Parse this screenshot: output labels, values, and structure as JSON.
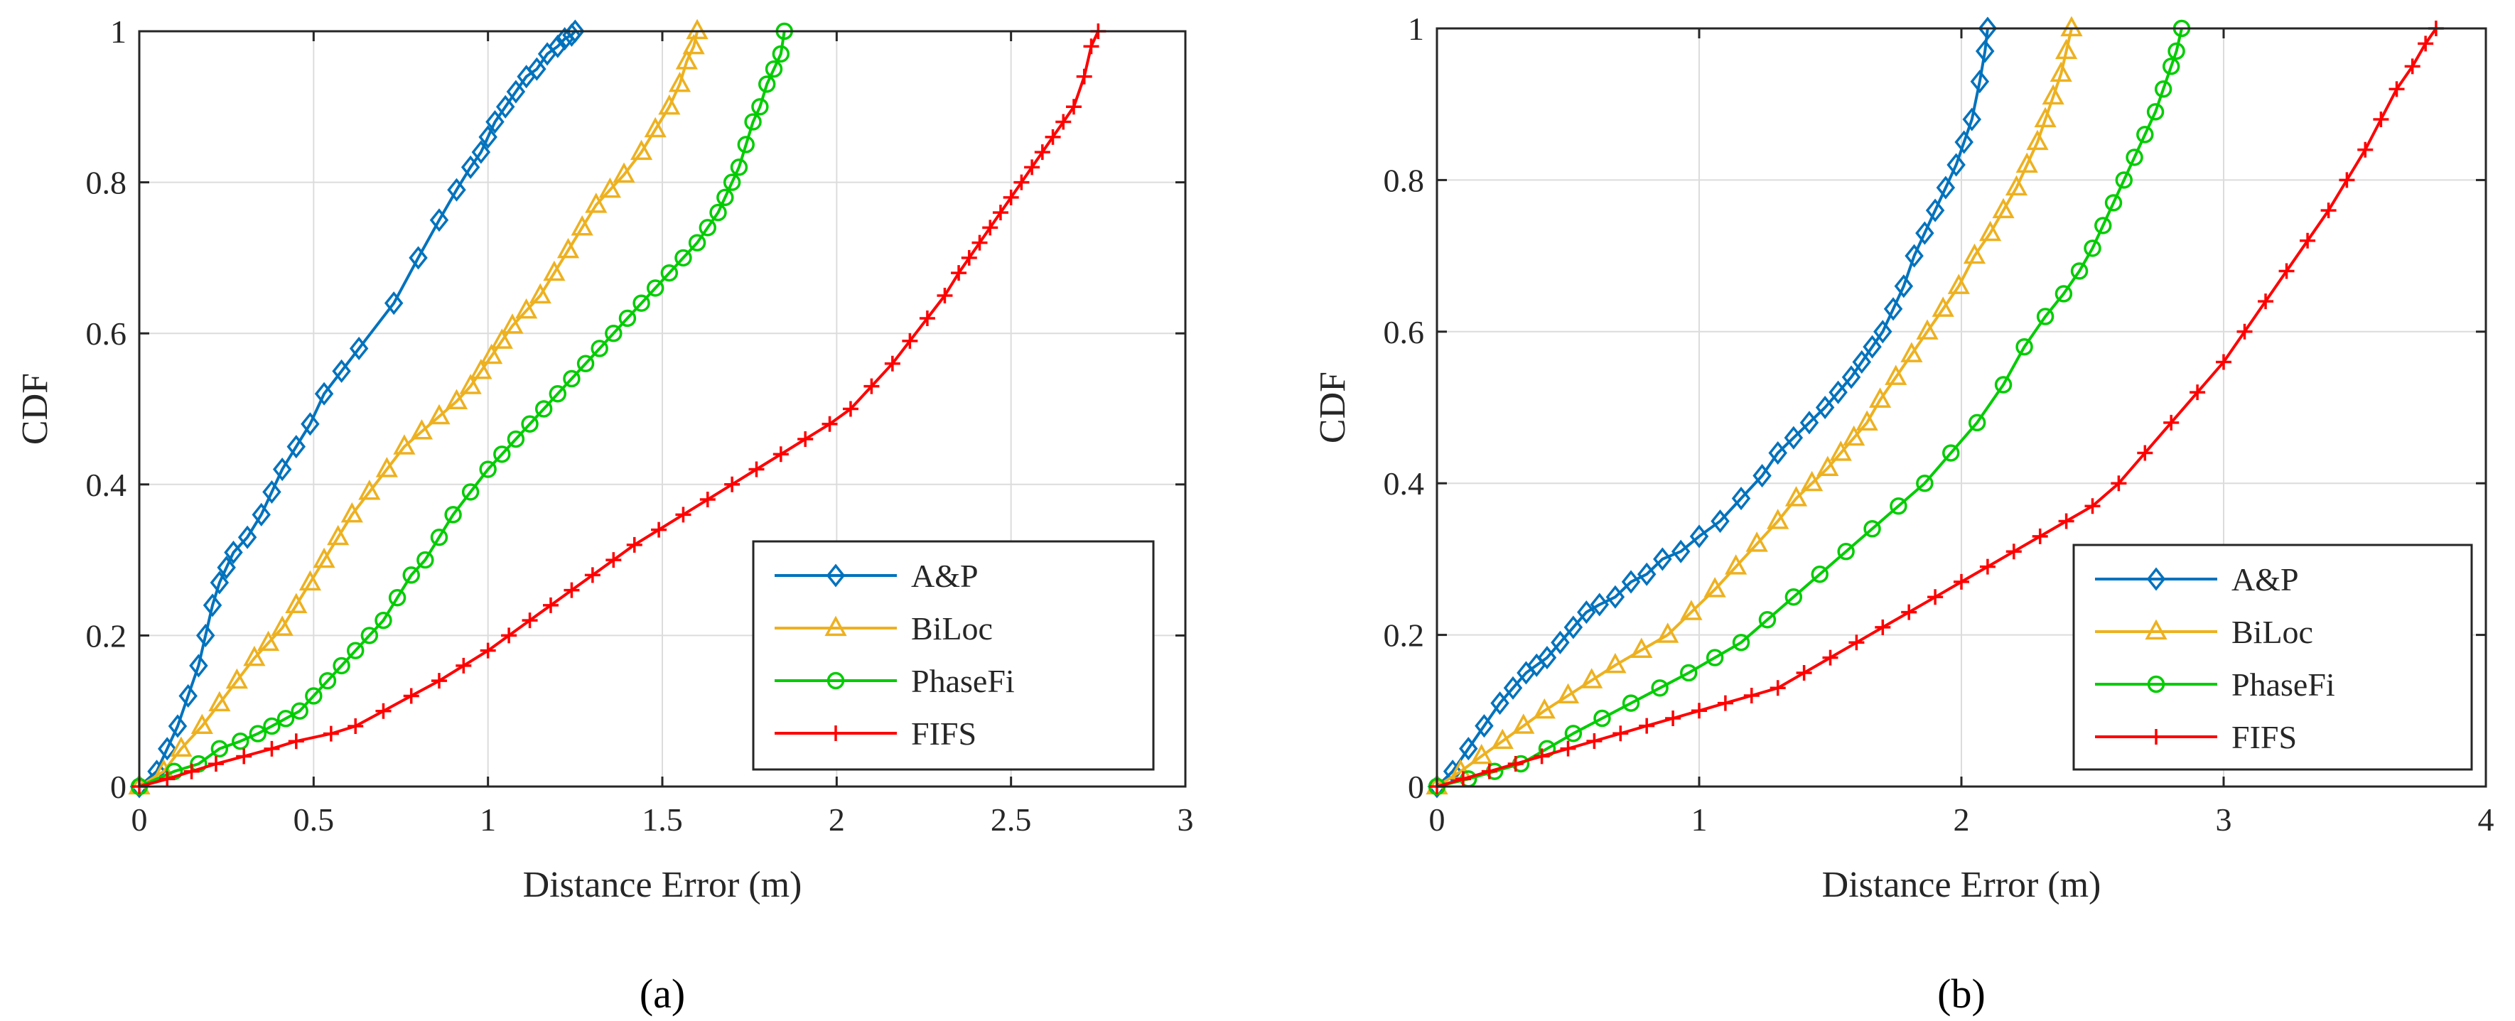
{
  "chart_data": [
    {
      "type": "line",
      "panel_label": "(a)",
      "xlabel": "Distance Error (m)",
      "ylabel": "CDF",
      "xlim": [
        0,
        3
      ],
      "ylim": [
        0,
        1
      ],
      "xticks": [
        0,
        0.5,
        1,
        1.5,
        2,
        2.5,
        3
      ],
      "xtick_labels": [
        "0",
        "0.5",
        "1",
        "1.5",
        "2",
        "2.5",
        "3"
      ],
      "yticks": [
        0,
        0.2,
        0.4,
        0.6,
        0.8,
        1
      ],
      "ytick_labels": [
        "0",
        "0.2",
        "0.4",
        "0.6",
        "0.8",
        "1"
      ],
      "grid": true,
      "legend_position": "bottom-right",
      "series": [
        {
          "name": "A&P",
          "color": "#0072BD",
          "marker": "diamond",
          "x": [
            0,
            0.05,
            0.08,
            0.11,
            0.14,
            0.17,
            0.19,
            0.21,
            0.23,
            0.25,
            0.27,
            0.31,
            0.35,
            0.38,
            0.41,
            0.45,
            0.49,
            0.53,
            0.58,
            0.63,
            0.73,
            0.8,
            0.86,
            0.91,
            0.95,
            0.98,
            1.0,
            1.02,
            1.05,
            1.08,
            1.11,
            1.14,
            1.17,
            1.2,
            1.22,
            1.24,
            1.25
          ],
          "y": [
            0,
            0.02,
            0.05,
            0.08,
            0.12,
            0.16,
            0.2,
            0.24,
            0.27,
            0.29,
            0.31,
            0.33,
            0.36,
            0.39,
            0.42,
            0.45,
            0.48,
            0.52,
            0.55,
            0.58,
            0.64,
            0.7,
            0.75,
            0.79,
            0.82,
            0.84,
            0.86,
            0.88,
            0.9,
            0.92,
            0.94,
            0.95,
            0.97,
            0.98,
            0.99,
            0.995,
            1.0
          ]
        },
        {
          "name": "BiLoc",
          "color": "#EDB120",
          "marker": "triangle",
          "x": [
            0,
            0.07,
            0.12,
            0.18,
            0.23,
            0.28,
            0.33,
            0.37,
            0.41,
            0.45,
            0.49,
            0.53,
            0.57,
            0.61,
            0.66,
            0.71,
            0.76,
            0.81,
            0.86,
            0.91,
            0.95,
            0.98,
            1.01,
            1.04,
            1.07,
            1.11,
            1.15,
            1.19,
            1.23,
            1.27,
            1.31,
            1.35,
            1.39,
            1.44,
            1.48,
            1.52,
            1.55,
            1.57,
            1.59,
            1.6
          ],
          "y": [
            0,
            0.02,
            0.05,
            0.08,
            0.11,
            0.14,
            0.17,
            0.19,
            0.21,
            0.24,
            0.27,
            0.3,
            0.33,
            0.36,
            0.39,
            0.42,
            0.45,
            0.47,
            0.49,
            0.51,
            0.53,
            0.55,
            0.57,
            0.59,
            0.61,
            0.63,
            0.65,
            0.68,
            0.71,
            0.74,
            0.77,
            0.79,
            0.81,
            0.84,
            0.87,
            0.9,
            0.93,
            0.96,
            0.98,
            1.0
          ]
        },
        {
          "name": "PhaseFi",
          "color": "#00CC00",
          "marker": "circle",
          "x": [
            0,
            0.1,
            0.17,
            0.23,
            0.29,
            0.34,
            0.38,
            0.42,
            0.46,
            0.5,
            0.54,
            0.58,
            0.62,
            0.66,
            0.7,
            0.74,
            0.78,
            0.82,
            0.86,
            0.9,
            0.95,
            1.0,
            1.04,
            1.08,
            1.12,
            1.16,
            1.2,
            1.24,
            1.28,
            1.32,
            1.36,
            1.4,
            1.44,
            1.48,
            1.52,
            1.56,
            1.6,
            1.63,
            1.66,
            1.68,
            1.7,
            1.72,
            1.74,
            1.76,
            1.78,
            1.8,
            1.82,
            1.84,
            1.85
          ],
          "y": [
            0,
            0.02,
            0.03,
            0.05,
            0.06,
            0.07,
            0.08,
            0.09,
            0.1,
            0.12,
            0.14,
            0.16,
            0.18,
            0.2,
            0.22,
            0.25,
            0.28,
            0.3,
            0.33,
            0.36,
            0.39,
            0.42,
            0.44,
            0.46,
            0.48,
            0.5,
            0.52,
            0.54,
            0.56,
            0.58,
            0.6,
            0.62,
            0.64,
            0.66,
            0.68,
            0.7,
            0.72,
            0.74,
            0.76,
            0.78,
            0.8,
            0.82,
            0.85,
            0.88,
            0.9,
            0.93,
            0.95,
            0.97,
            1.0
          ]
        },
        {
          "name": "FIFS",
          "color": "#FF0000",
          "marker": "plus",
          "x": [
            0,
            0.08,
            0.15,
            0.22,
            0.3,
            0.38,
            0.45,
            0.55,
            0.62,
            0.7,
            0.78,
            0.86,
            0.93,
            1.0,
            1.06,
            1.12,
            1.18,
            1.24,
            1.3,
            1.36,
            1.42,
            1.49,
            1.56,
            1.63,
            1.7,
            1.77,
            1.84,
            1.91,
            1.98,
            2.04,
            2.1,
            2.16,
            2.21,
            2.26,
            2.31,
            2.35,
            2.38,
            2.41,
            2.44,
            2.47,
            2.5,
            2.53,
            2.56,
            2.59,
            2.62,
            2.65,
            2.68,
            2.71,
            2.73,
            2.75
          ],
          "y": [
            0,
            0.01,
            0.02,
            0.03,
            0.04,
            0.05,
            0.06,
            0.07,
            0.08,
            0.1,
            0.12,
            0.14,
            0.16,
            0.18,
            0.2,
            0.22,
            0.24,
            0.26,
            0.28,
            0.3,
            0.32,
            0.34,
            0.36,
            0.38,
            0.4,
            0.42,
            0.44,
            0.46,
            0.48,
            0.5,
            0.53,
            0.56,
            0.59,
            0.62,
            0.65,
            0.68,
            0.7,
            0.72,
            0.74,
            0.76,
            0.78,
            0.8,
            0.82,
            0.84,
            0.86,
            0.88,
            0.9,
            0.94,
            0.98,
            1.0
          ]
        }
      ]
    },
    {
      "type": "line",
      "panel_label": "(b)",
      "xlabel": "Distance Error (m)",
      "ylabel": "CDF",
      "xlim": [
        0,
        4
      ],
      "ylim": [
        0,
        1
      ],
      "xticks": [
        0,
        1,
        2,
        3,
        4
      ],
      "xtick_labels": [
        "0",
        "1",
        "2",
        "3",
        "4"
      ],
      "yticks": [
        0,
        0.2,
        0.4,
        0.6,
        0.8,
        1
      ],
      "ytick_labels": [
        "0",
        "0.2",
        "0.4",
        "0.6",
        "0.8",
        "1"
      ],
      "grid": true,
      "legend_position": "bottom-right",
      "series": [
        {
          "name": "A&P",
          "color": "#0072BD",
          "marker": "diamond",
          "x": [
            0,
            0.06,
            0.12,
            0.18,
            0.24,
            0.29,
            0.34,
            0.38,
            0.42,
            0.47,
            0.52,
            0.57,
            0.62,
            0.68,
            0.74,
            0.8,
            0.86,
            0.93,
            1.0,
            1.08,
            1.16,
            1.24,
            1.3,
            1.36,
            1.42,
            1.48,
            1.53,
            1.58,
            1.62,
            1.66,
            1.7,
            1.74,
            1.78,
            1.82,
            1.86,
            1.9,
            1.94,
            1.98,
            2.01,
            2.04,
            2.07,
            2.09,
            2.1
          ],
          "y": [
            0,
            0.02,
            0.05,
            0.08,
            0.11,
            0.13,
            0.15,
            0.16,
            0.17,
            0.19,
            0.21,
            0.23,
            0.24,
            0.25,
            0.27,
            0.28,
            0.3,
            0.31,
            0.33,
            0.35,
            0.38,
            0.41,
            0.44,
            0.46,
            0.48,
            0.5,
            0.52,
            0.54,
            0.56,
            0.58,
            0.6,
            0.63,
            0.66,
            0.7,
            0.73,
            0.76,
            0.79,
            0.82,
            0.85,
            0.88,
            0.93,
            0.97,
            1.0
          ]
        },
        {
          "name": "BiLoc",
          "color": "#EDB120",
          "marker": "triangle",
          "x": [
            0,
            0.09,
            0.17,
            0.25,
            0.33,
            0.41,
            0.5,
            0.59,
            0.68,
            0.78,
            0.88,
            0.97,
            1.06,
            1.14,
            1.22,
            1.3,
            1.37,
            1.43,
            1.49,
            1.54,
            1.59,
            1.64,
            1.69,
            1.75,
            1.81,
            1.87,
            1.93,
            1.99,
            2.05,
            2.11,
            2.16,
            2.21,
            2.25,
            2.29,
            2.32,
            2.35,
            2.38,
            2.4,
            2.42
          ],
          "y": [
            0,
            0.02,
            0.04,
            0.06,
            0.08,
            0.1,
            0.12,
            0.14,
            0.16,
            0.18,
            0.2,
            0.23,
            0.26,
            0.29,
            0.32,
            0.35,
            0.38,
            0.4,
            0.42,
            0.44,
            0.46,
            0.48,
            0.51,
            0.54,
            0.57,
            0.6,
            0.63,
            0.66,
            0.7,
            0.73,
            0.76,
            0.79,
            0.82,
            0.85,
            0.88,
            0.91,
            0.94,
            0.97,
            1.0
          ]
        },
        {
          "name": "PhaseFi",
          "color": "#00CC00",
          "marker": "circle",
          "x": [
            0,
            0.12,
            0.22,
            0.32,
            0.42,
            0.52,
            0.63,
            0.74,
            0.85,
            0.96,
            1.06,
            1.16,
            1.26,
            1.36,
            1.46,
            1.56,
            1.66,
            1.76,
            1.86,
            1.96,
            2.06,
            2.16,
            2.24,
            2.32,
            2.39,
            2.45,
            2.5,
            2.54,
            2.58,
            2.62,
            2.66,
            2.7,
            2.74,
            2.77,
            2.8,
            2.82,
            2.84
          ],
          "y": [
            0,
            0.01,
            0.02,
            0.03,
            0.05,
            0.07,
            0.09,
            0.11,
            0.13,
            0.15,
            0.17,
            0.19,
            0.22,
            0.25,
            0.28,
            0.31,
            0.34,
            0.37,
            0.4,
            0.44,
            0.48,
            0.53,
            0.58,
            0.62,
            0.65,
            0.68,
            0.71,
            0.74,
            0.77,
            0.8,
            0.83,
            0.86,
            0.89,
            0.92,
            0.95,
            0.97,
            1.0
          ]
        },
        {
          "name": "FIFS",
          "color": "#FF0000",
          "marker": "plus",
          "x": [
            0,
            0.1,
            0.2,
            0.3,
            0.4,
            0.5,
            0.6,
            0.7,
            0.8,
            0.9,
            1.0,
            1.1,
            1.2,
            1.3,
            1.4,
            1.5,
            1.6,
            1.7,
            1.8,
            1.9,
            2.0,
            2.1,
            2.2,
            2.3,
            2.4,
            2.5,
            2.6,
            2.7,
            2.8,
            2.9,
            3.0,
            3.08,
            3.16,
            3.24,
            3.32,
            3.4,
            3.47,
            3.54,
            3.6,
            3.66,
            3.72,
            3.77,
            3.81
          ],
          "y": [
            0,
            0.01,
            0.02,
            0.03,
            0.04,
            0.05,
            0.06,
            0.07,
            0.08,
            0.09,
            0.1,
            0.11,
            0.12,
            0.13,
            0.15,
            0.17,
            0.19,
            0.21,
            0.23,
            0.25,
            0.27,
            0.29,
            0.31,
            0.33,
            0.35,
            0.37,
            0.4,
            0.44,
            0.48,
            0.52,
            0.56,
            0.6,
            0.64,
            0.68,
            0.72,
            0.76,
            0.8,
            0.84,
            0.88,
            0.92,
            0.95,
            0.98,
            1.0
          ]
        }
      ]
    }
  ]
}
